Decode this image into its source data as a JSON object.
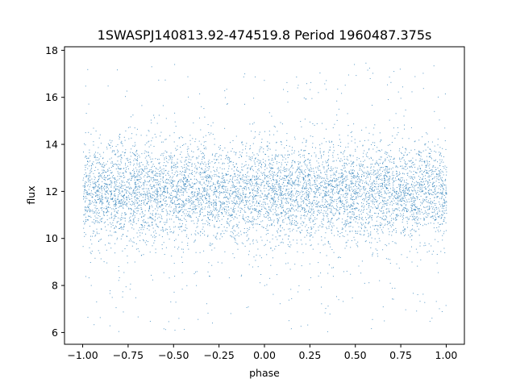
{
  "chart_data": {
    "type": "scatter",
    "title": "1SWASPJ140813.92-474519.8 Period 1960487.375s",
    "xlabel": "phase",
    "ylabel": "flux",
    "xlim": [
      -1.1,
      1.1
    ],
    "ylim": [
      5.5,
      18.15
    ],
    "xticks": [
      -1.0,
      -0.75,
      -0.5,
      -0.25,
      0.0,
      0.25,
      0.5,
      0.75,
      1.0
    ],
    "xtick_labels": [
      "−1.00",
      "−0.75",
      "−0.50",
      "−0.25",
      "0.00",
      "0.25",
      "0.50",
      "0.75",
      "1.00"
    ],
    "yticks": [
      6,
      8,
      10,
      12,
      14,
      16,
      18
    ],
    "ytick_labels": [
      "6",
      "8",
      "10",
      "12",
      "14",
      "16",
      "18"
    ],
    "x_range": [
      -1.0,
      1.0
    ],
    "flux_center": 12.0,
    "flux_core_range": [
      9.5,
      14.5
    ],
    "flux_outlier_range": [
      6.0,
      17.5
    ],
    "marker_color": "#1f77b4",
    "grid": false,
    "legend": "none"
  }
}
